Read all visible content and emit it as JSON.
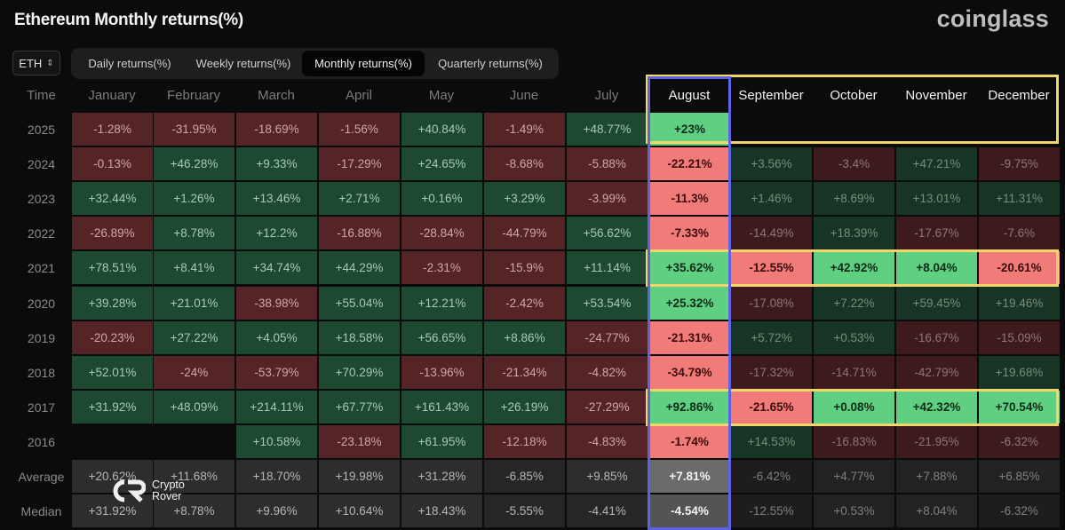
{
  "header": {
    "title": "Ethereum Monthly returns(%)",
    "brand": "coinglass",
    "asset": "ETH",
    "tabs": [
      "Daily returns(%)",
      "Weekly returns(%)",
      "Monthly returns(%)",
      "Quarterly returns(%)"
    ],
    "active_tab": "Monthly returns(%)"
  },
  "table": {
    "corner": "Time",
    "months": [
      "January",
      "February",
      "March",
      "April",
      "May",
      "June",
      "July",
      "August",
      "September",
      "October",
      "November",
      "December"
    ],
    "rows": [
      {
        "label": "2025",
        "values": [
          "-1.28%",
          "-31.95%",
          "-18.69%",
          "-1.56%",
          "+40.84%",
          "-1.49%",
          "+48.77%",
          "+23%",
          "",
          "",
          "",
          ""
        ]
      },
      {
        "label": "2024",
        "values": [
          "-0.13%",
          "+46.28%",
          "+9.33%",
          "-17.29%",
          "+24.65%",
          "-8.68%",
          "-5.88%",
          "-22.21%",
          "+3.56%",
          "-3.4%",
          "+47.21%",
          "-9.75%"
        ]
      },
      {
        "label": "2023",
        "values": [
          "+32.44%",
          "+1.26%",
          "+13.46%",
          "+2.71%",
          "+0.16%",
          "+3.29%",
          "-3.99%",
          "-11.3%",
          "+1.46%",
          "+8.69%",
          "+13.01%",
          "+11.31%"
        ]
      },
      {
        "label": "2022",
        "values": [
          "-26.89%",
          "+8.78%",
          "+12.2%",
          "-16.88%",
          "-28.84%",
          "-44.79%",
          "+56.62%",
          "-7.33%",
          "-14.49%",
          "+18.39%",
          "-17.67%",
          "-7.6%"
        ]
      },
      {
        "label": "2021",
        "values": [
          "+78.51%",
          "+8.41%",
          "+34.74%",
          "+44.29%",
          "-2.31%",
          "-15.9%",
          "+11.14%",
          "+35.62%",
          "-12.55%",
          "+42.92%",
          "+8.04%",
          "-20.61%"
        ]
      },
      {
        "label": "2020",
        "values": [
          "+39.28%",
          "+21.01%",
          "-38.98%",
          "+55.04%",
          "+12.21%",
          "-2.42%",
          "+53.54%",
          "+25.32%",
          "-17.08%",
          "+7.22%",
          "+59.45%",
          "+19.46%"
        ]
      },
      {
        "label": "2019",
        "values": [
          "-20.23%",
          "+27.22%",
          "+4.05%",
          "+18.58%",
          "+56.65%",
          "+8.86%",
          "-24.77%",
          "-21.31%",
          "+5.72%",
          "+0.53%",
          "-16.67%",
          "-15.09%"
        ]
      },
      {
        "label": "2018",
        "values": [
          "+52.01%",
          "-24%",
          "-53.79%",
          "+70.29%",
          "-13.96%",
          "-21.34%",
          "-4.82%",
          "-34.79%",
          "-17.32%",
          "-14.71%",
          "-42.79%",
          "+19.68%"
        ]
      },
      {
        "label": "2017",
        "values": [
          "+31.92%",
          "+48.09%",
          "+214.11%",
          "+67.77%",
          "+161.43%",
          "+26.19%",
          "-27.29%",
          "+92.86%",
          "-21.65%",
          "+0.08%",
          "+42.32%",
          "+70.54%"
        ]
      },
      {
        "label": "2016",
        "values": [
          "",
          "",
          "+10.58%",
          "-23.18%",
          "+61.95%",
          "-12.18%",
          "-4.83%",
          "-1.74%",
          "+14.53%",
          "-16.83%",
          "-21.95%",
          "-6.32%"
        ]
      },
      {
        "label": "Average",
        "values": [
          "+20.62%",
          "+11.68%",
          "+18.70%",
          "+19.98%",
          "+31.28%",
          "-6.85%",
          "+9.85%",
          "+7.81%",
          "-6.42%",
          "+4.77%",
          "+7.88%",
          "+6.85%"
        ]
      },
      {
        "label": "Median",
        "values": [
          "+31.92%",
          "+8.78%",
          "+9.96%",
          "+10.64%",
          "+18.43%",
          "-5.55%",
          "-4.41%",
          "-4.54%",
          "-12.55%",
          "+0.53%",
          "+8.04%",
          "-6.32%"
        ]
      }
    ]
  },
  "highlights": {
    "yellow": "#f2d66b",
    "blue": "#5d63e3",
    "positive": "#5fcf82",
    "negative": "#f07b78"
  },
  "watermark": {
    "line1": "Crypto",
    "line2": "Rover"
  }
}
